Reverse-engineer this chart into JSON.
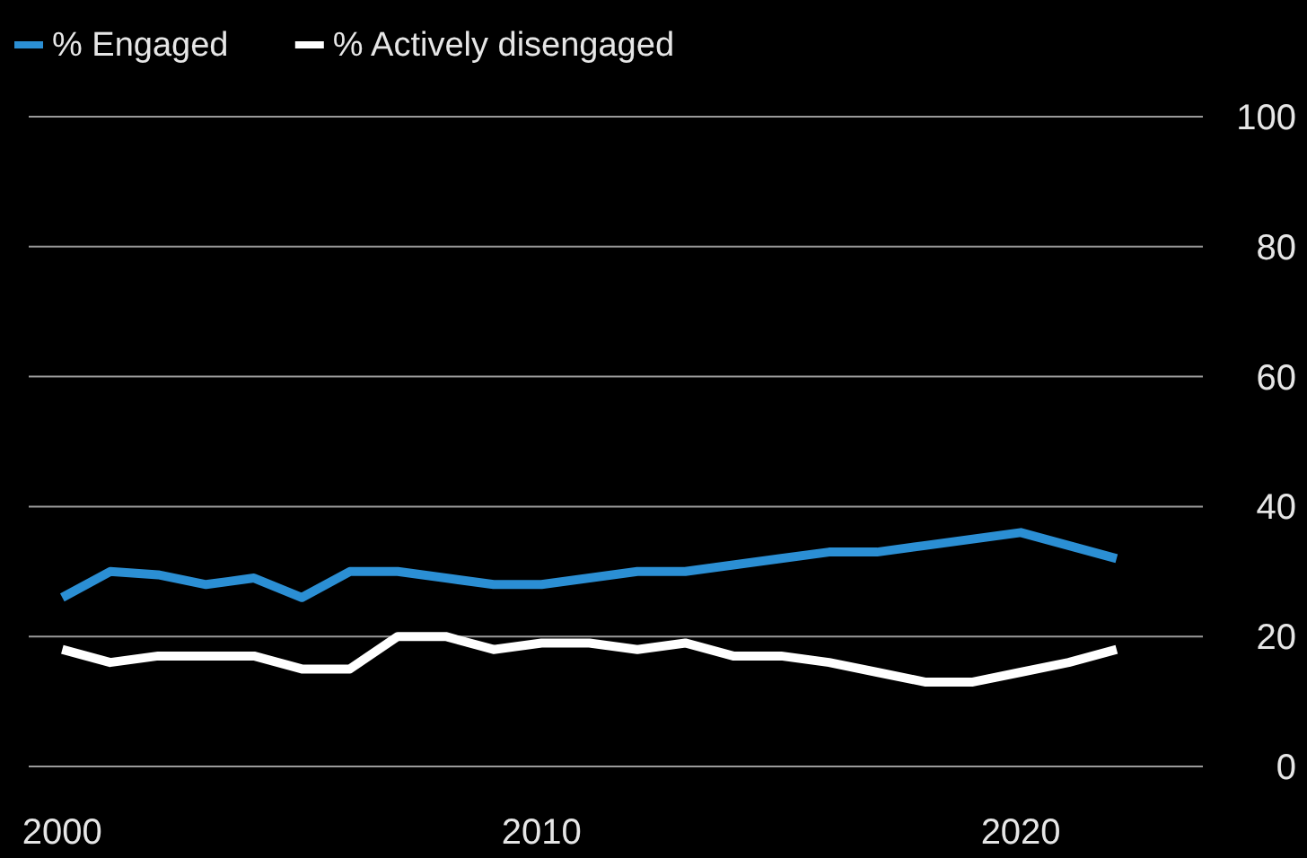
{
  "chart_data": {
    "type": "line",
    "x": [
      2000,
      2001,
      2002,
      2003,
      2004,
      2005,
      2006,
      2007,
      2008,
      2009,
      2010,
      2011,
      2012,
      2013,
      2014,
      2015,
      2016,
      2017,
      2018,
      2019,
      2020,
      2021,
      2022
    ],
    "series": [
      {
        "name": "% Engaged",
        "color": "#2b8fd4",
        "values": [
          26,
          30,
          29.5,
          28,
          29,
          26,
          30,
          30,
          29,
          28,
          28,
          29,
          30,
          30,
          31,
          32,
          33,
          33,
          34,
          35,
          36,
          34,
          32
        ]
      },
      {
        "name": "% Actively disengaged",
        "color": "#ffffff",
        "values": [
          18,
          16,
          17,
          17,
          17,
          15,
          15,
          20,
          20,
          18,
          19,
          19,
          18,
          19,
          17,
          17,
          16,
          14.5,
          13,
          13,
          14.5,
          16,
          18
        ]
      }
    ],
    "xlim": [
      1999.3,
      2023.8
    ],
    "xticks": [
      2000,
      2010,
      2020
    ],
    "ylim": [
      0,
      100
    ],
    "yticks": [
      0,
      20,
      40,
      60,
      80,
      100
    ],
    "grid": "y",
    "legend": "top left",
    "marker": "none",
    "line_style": "solid"
  }
}
